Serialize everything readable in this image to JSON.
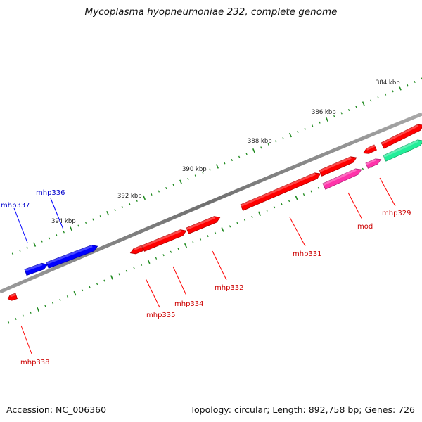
{
  "title": "Mycoplasma hyopneumoniae 232, complete genome",
  "footer": {
    "accession": "Accession: NC_006360",
    "summary": "Topology: circular; Length: 892,758 bp; Genes: 726"
  },
  "colors": {
    "forward_gene": "#ff0000",
    "reverse_gene": "#0000ff",
    "magenta_gene": "#ff33aa",
    "teal_gene": "#22ee99",
    "backbone": "#808080",
    "tick": "#1f8a1f"
  },
  "scale_labels": [
    "384 kbp",
    "386 kbp",
    "388 kbp",
    "390 kbp",
    "392 kbp",
    "394 kbp"
  ],
  "genes": [
    {
      "id": "mhp329",
      "label": "mhp329"
    },
    {
      "id": "mod",
      "label": "mod"
    },
    {
      "id": "mhp331",
      "label": "mhp331"
    },
    {
      "id": "mhp332",
      "label": "mhp332"
    },
    {
      "id": "mhp334",
      "label": "mhp334"
    },
    {
      "id": "mhp335",
      "label": "mhp335"
    },
    {
      "id": "mhp336",
      "label": "mhp336"
    },
    {
      "id": "mhp337",
      "label": "mhp337"
    },
    {
      "id": "mhp338",
      "label": "mhp338"
    }
  ]
}
